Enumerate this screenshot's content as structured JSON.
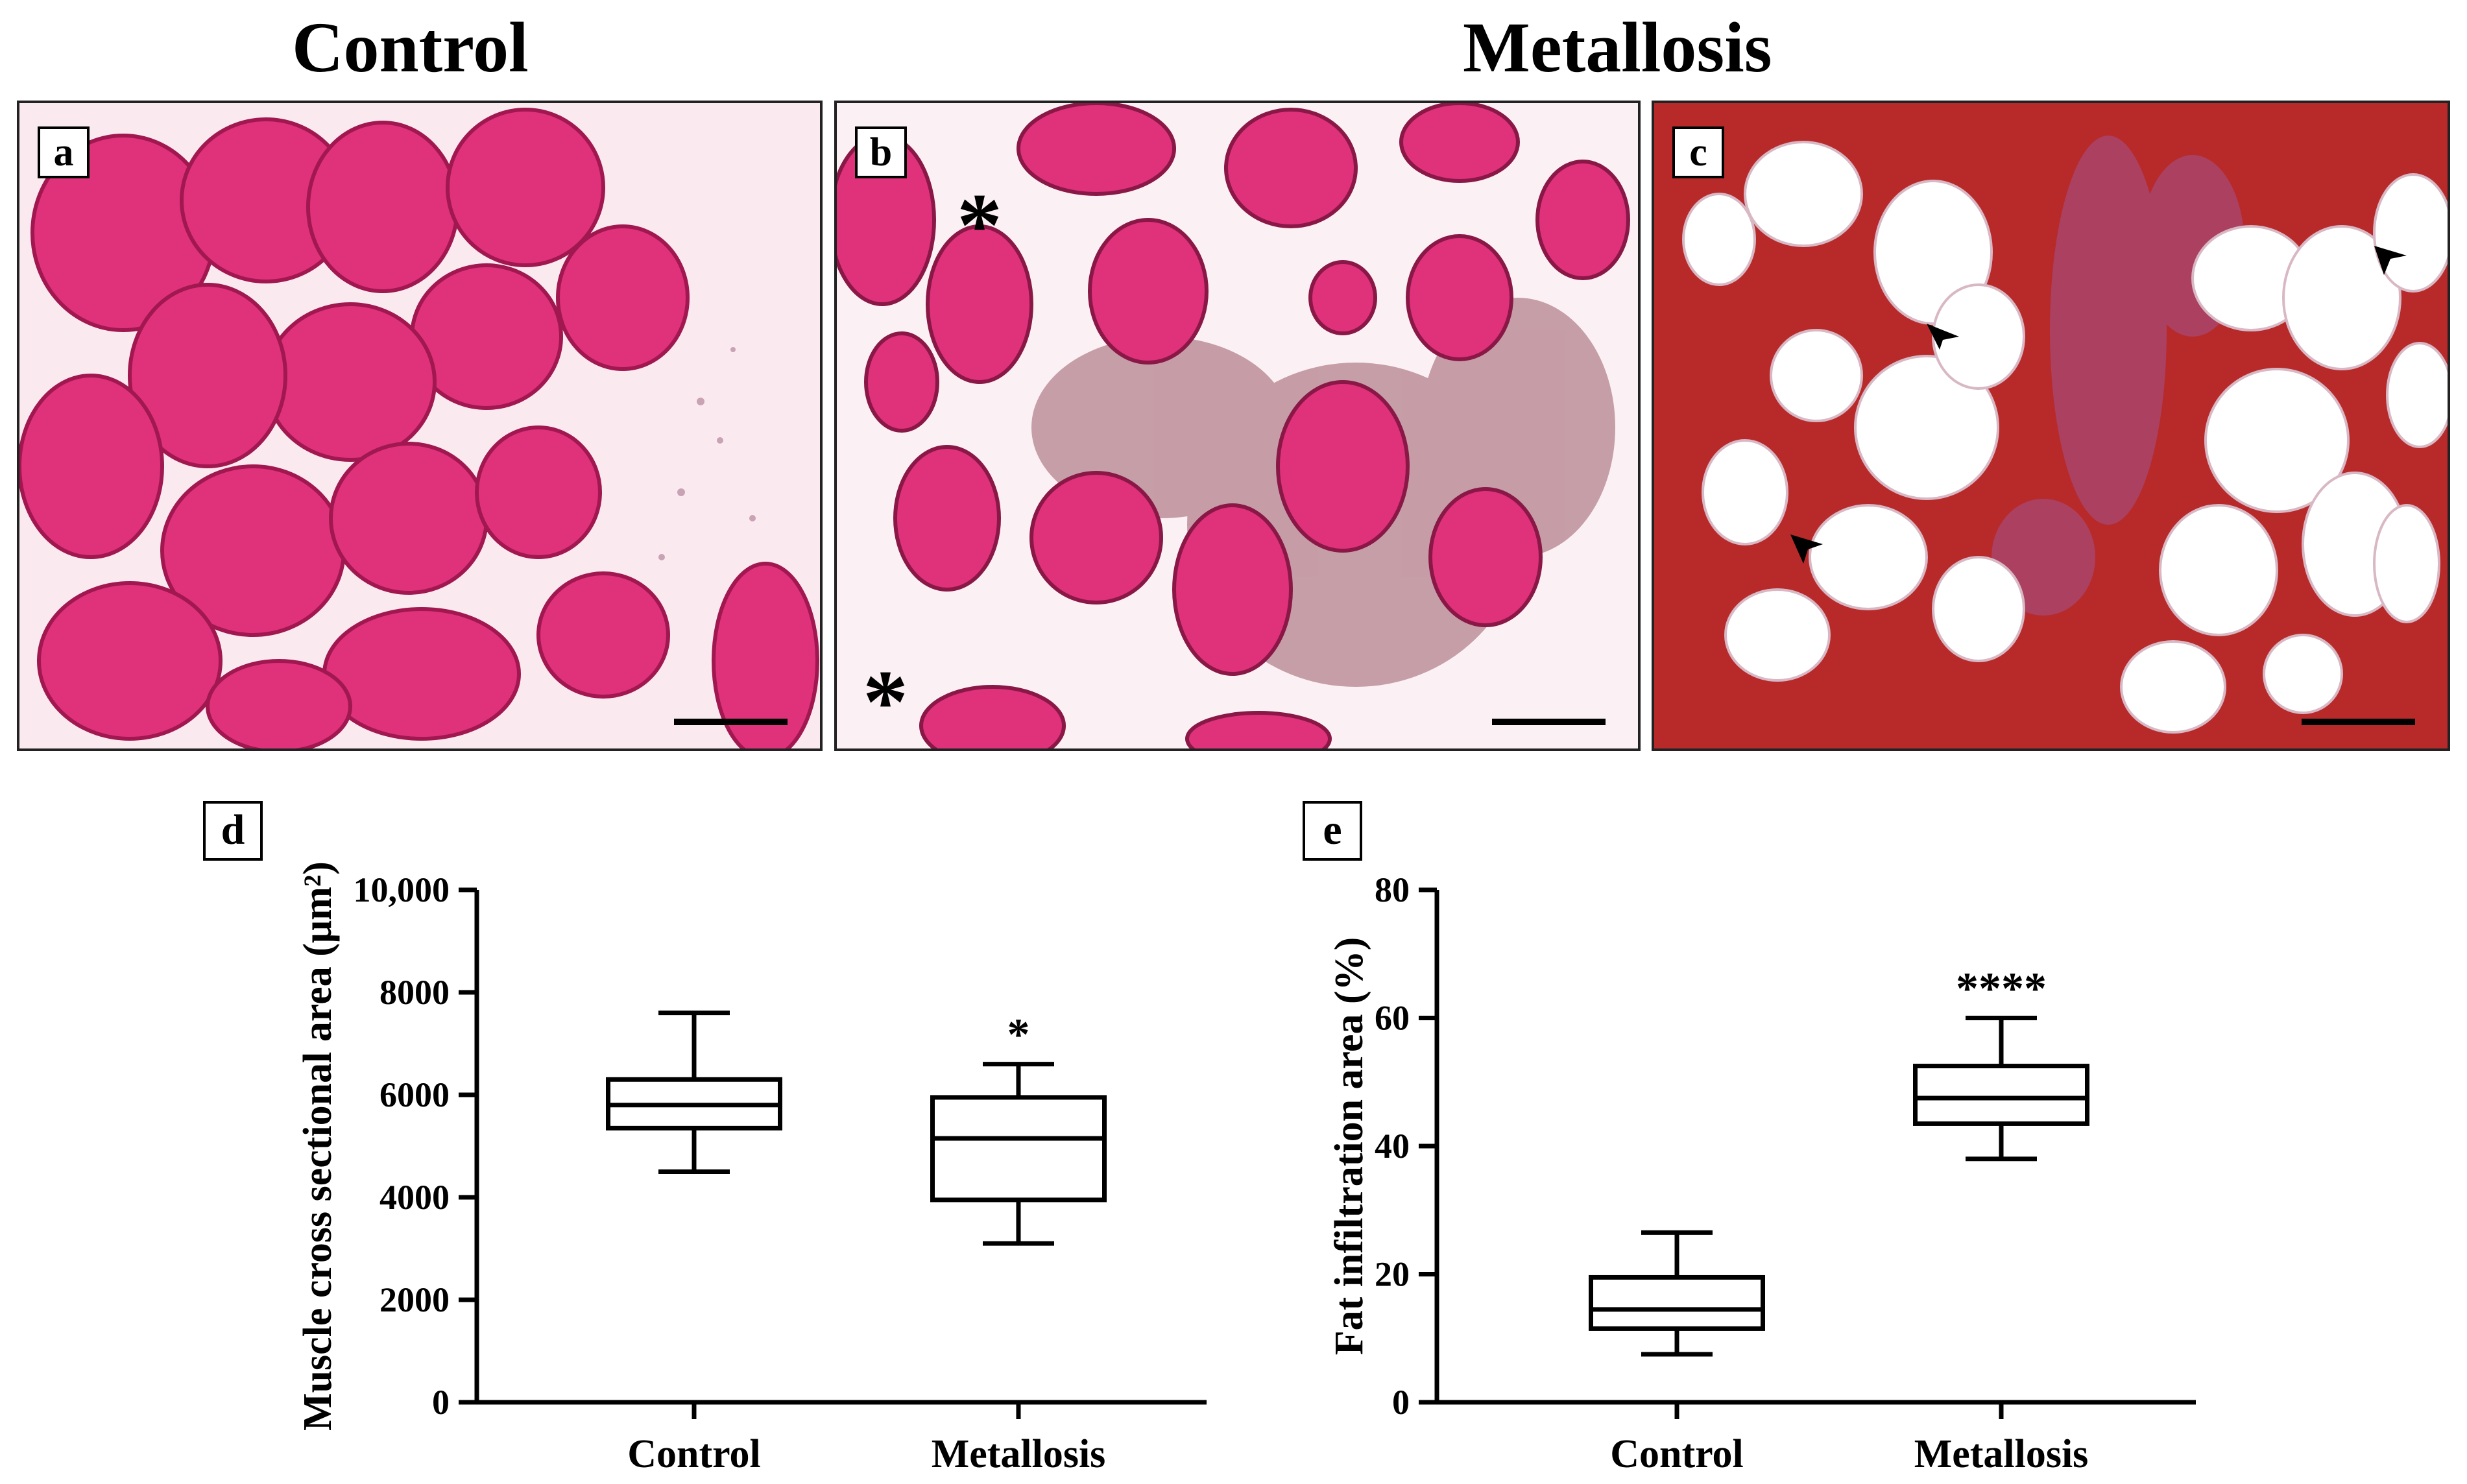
{
  "headings": {
    "control": "Control",
    "metallosis": "Metallosis"
  },
  "panels": [
    {
      "letter": "a",
      "colors": {
        "background": "#fbe9f0",
        "fiber": "#e0317b",
        "fiber_edge": "#a0184f"
      }
    },
    {
      "letter": "b",
      "colors": {
        "background": "#fbf1f4",
        "fiber": "#e0317b",
        "fiber_edge": "#8a1846",
        "debris": "#9b5a6a"
      },
      "markers": [
        "*",
        "*"
      ]
    },
    {
      "letter": "c",
      "colors": {
        "background": "#b82a2a",
        "fat": "#ffffff",
        "tissue": "#a8466e"
      },
      "markers": [
        "arrowhead",
        "arrowhead",
        "arrowhead"
      ]
    }
  ],
  "chart_data": [
    {
      "type": "box",
      "panel_label": "d",
      "categories": [
        "Control",
        "Metallosis"
      ],
      "ylabel": "Muscle cross sectional area (μm²)",
      "ylim": [
        0,
        10000
      ],
      "yticks": [
        0,
        2000,
        4000,
        6000,
        8000,
        10000
      ],
      "ytick_labels": [
        "0",
        "2000",
        "4000",
        "6000",
        "8000",
        "10,000"
      ],
      "boxes": [
        {
          "category": "Control",
          "min": 4500,
          "q1": 5350,
          "median": 5800,
          "q3": 6300,
          "max": 7600,
          "annotation": ""
        },
        {
          "category": "Metallosis",
          "min": 3100,
          "q1": 3950,
          "median": 5150,
          "q3": 5950,
          "max": 6600,
          "annotation": "*"
        }
      ]
    },
    {
      "type": "box",
      "panel_label": "e",
      "categories": [
        "Control",
        "Metallosis"
      ],
      "ylabel": "Fat infiltration area (%)",
      "ylim": [
        0,
        80
      ],
      "yticks": [
        0,
        20,
        40,
        60,
        80
      ],
      "ytick_labels": [
        "0",
        "20",
        "40",
        "60",
        "80"
      ],
      "boxes": [
        {
          "category": "Control",
          "min": 7.5,
          "q1": 11.5,
          "median": 14.5,
          "q3": 19.5,
          "max": 26.5,
          "annotation": ""
        },
        {
          "category": "Metallosis",
          "min": 38,
          "q1": 43.5,
          "median": 47.5,
          "q3": 52.5,
          "max": 60,
          "annotation": "****"
        }
      ]
    }
  ]
}
